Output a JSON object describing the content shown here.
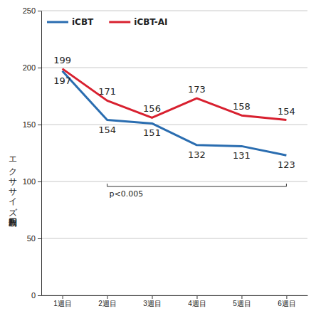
{
  "chart_data": {
    "type": "line",
    "categories": [
      "1週目",
      "2週目",
      "3週目",
      "4週目",
      "5週目",
      "6週目"
    ],
    "y_label": "エクササイズ利用回数",
    "series": [
      {
        "name": "iCBT",
        "color": "#2a6db0",
        "values": [
          197,
          154,
          151,
          132,
          131,
          123
        ]
      },
      {
        "name": "iCBT-AI",
        "color": "#d8202f",
        "values": [
          199,
          171,
          156,
          173,
          158,
          154
        ]
      }
    ],
    "ylim": [
      0,
      250
    ],
    "yticks": [
      0,
      50,
      100,
      150,
      200,
      250
    ],
    "grid": true,
    "legend": "upper left",
    "data_labels": true,
    "annotations": [
      {
        "text": "p<0.005",
        "from": "2週目",
        "to": "6週目"
      }
    ]
  }
}
